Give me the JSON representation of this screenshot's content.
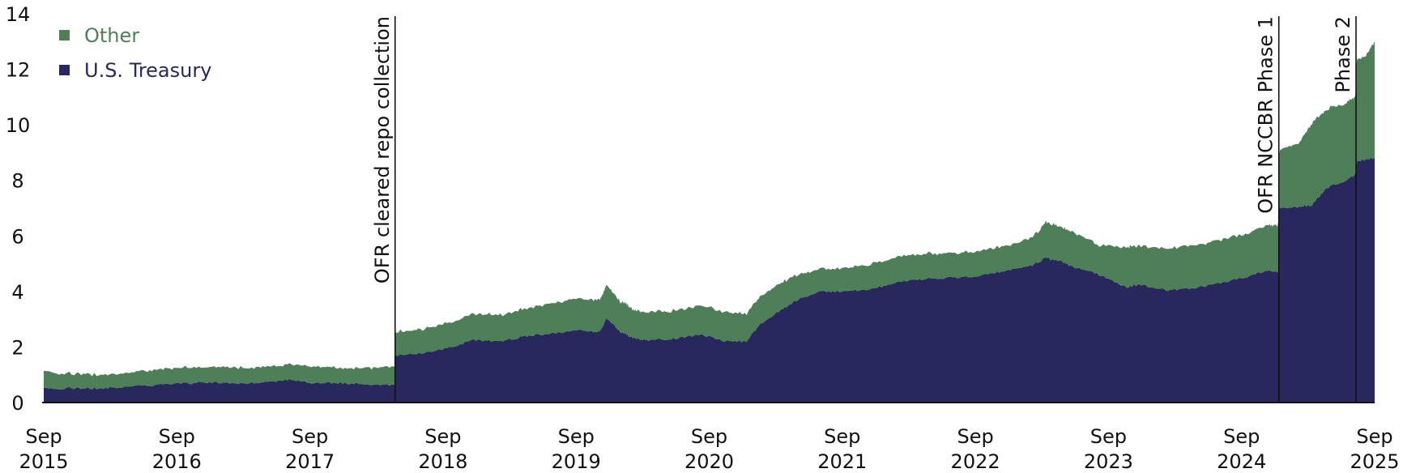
{
  "chart_data": {
    "type": "area",
    "stacked": true,
    "title": "",
    "xlabel": "",
    "ylabel": "",
    "ylim": [
      0,
      14
    ],
    "yticks": [
      0,
      2,
      4,
      6,
      8,
      10,
      12,
      14
    ],
    "xticks": [
      {
        "label": [
          "Sep",
          "2015"
        ],
        "t": 2015.67
      },
      {
        "label": [
          "Sep",
          "2016"
        ],
        "t": 2016.67
      },
      {
        "label": [
          "Sep",
          "2017"
        ],
        "t": 2017.67
      },
      {
        "label": [
          "Sep",
          "2018"
        ],
        "t": 2018.67
      },
      {
        "label": [
          "Sep",
          "2019"
        ],
        "t": 2019.67
      },
      {
        "label": [
          "Sep",
          "2020"
        ],
        "t": 2020.67
      },
      {
        "label": [
          "Sep",
          "2021"
        ],
        "t": 2021.67
      },
      {
        "label": [
          "Sep",
          "2022"
        ],
        "t": 2022.67
      },
      {
        "label": [
          "Sep",
          "2023"
        ],
        "t": 2023.67
      },
      {
        "label": [
          "Sep",
          "2024"
        ],
        "t": 2024.67
      },
      {
        "label": [
          "Sep",
          "2025"
        ],
        "t": 2025.67
      }
    ],
    "grid": false,
    "legend_position": "top-left",
    "legend": [
      {
        "name": "Other",
        "color": "#4e7f58"
      },
      {
        "name": "U.S. Treasury",
        "color": "#28285e"
      }
    ],
    "annotations": [
      {
        "label": "OFR cleared repo collection",
        "t": 2018.31
      },
      {
        "label": "OFR NCCBR Phase 1",
        "t": 2024.95
      },
      {
        "label": "Phase 2",
        "t": 2025.53
      }
    ],
    "x": [
      2015.67,
      2015.9,
      2016.1,
      2016.3,
      2016.5,
      2016.7,
      2016.9,
      2017.1,
      2017.3,
      2017.5,
      2017.7,
      2017.9,
      2018.1,
      2018.3,
      2018.32,
      2018.5,
      2018.7,
      2018.9,
      2019.1,
      2019.3,
      2019.5,
      2019.7,
      2019.85,
      2019.9,
      2020.0,
      2020.05,
      2020.1,
      2020.2,
      2020.4,
      2020.6,
      2020.8,
      2020.95,
      2021.05,
      2021.2,
      2021.35,
      2021.5,
      2021.7,
      2021.9,
      2022.1,
      2022.3,
      2022.5,
      2022.7,
      2022.9,
      2023.1,
      2023.2,
      2023.3,
      2023.4,
      2023.6,
      2023.8,
      2023.9,
      2024.1,
      2024.3,
      2024.5,
      2024.7,
      2024.85,
      2024.94,
      2024.96,
      2025.1,
      2025.2,
      2025.3,
      2025.45,
      2025.52,
      2025.54,
      2025.6,
      2025.67
    ],
    "series": [
      {
        "name": "U.S. Treasury",
        "color": "#28285e",
        "values": [
          0.5,
          0.52,
          0.5,
          0.58,
          0.62,
          0.68,
          0.72,
          0.7,
          0.72,
          0.82,
          0.7,
          0.7,
          0.66,
          0.62,
          1.7,
          1.75,
          1.95,
          2.25,
          2.2,
          2.4,
          2.5,
          2.6,
          2.55,
          3.05,
          2.55,
          2.45,
          2.3,
          2.25,
          2.3,
          2.45,
          2.2,
          2.2,
          2.8,
          3.3,
          3.75,
          4.0,
          4.0,
          4.1,
          4.35,
          4.45,
          4.5,
          4.55,
          4.75,
          4.95,
          5.2,
          5.1,
          4.9,
          4.6,
          4.15,
          4.25,
          4.05,
          4.1,
          4.3,
          4.5,
          4.75,
          4.7,
          7.0,
          7.05,
          7.1,
          7.7,
          8.0,
          8.2,
          8.7,
          8.75,
          8.8
        ]
      },
      {
        "name": "Other",
        "color": "#4e7f58",
        "values": [
          0.6,
          0.52,
          0.5,
          0.5,
          0.55,
          0.58,
          0.55,
          0.58,
          0.56,
          0.55,
          0.58,
          0.55,
          0.6,
          0.65,
          0.85,
          0.85,
          0.9,
          0.95,
          0.95,
          1.0,
          1.1,
          1.15,
          1.15,
          1.2,
          1.1,
          1.1,
          1.0,
          1.0,
          1.0,
          1.05,
          1.05,
          1.0,
          1.0,
          1.0,
          0.9,
          0.8,
          0.85,
          0.9,
          0.9,
          0.9,
          0.9,
          0.9,
          0.9,
          1.0,
          1.3,
          1.25,
          1.25,
          1.05,
          1.45,
          1.4,
          1.5,
          1.55,
          1.55,
          1.55,
          1.65,
          1.65,
          2.1,
          2.3,
          2.95,
          2.85,
          2.8,
          2.8,
          3.7,
          3.7,
          4.2
        ]
      }
    ]
  }
}
